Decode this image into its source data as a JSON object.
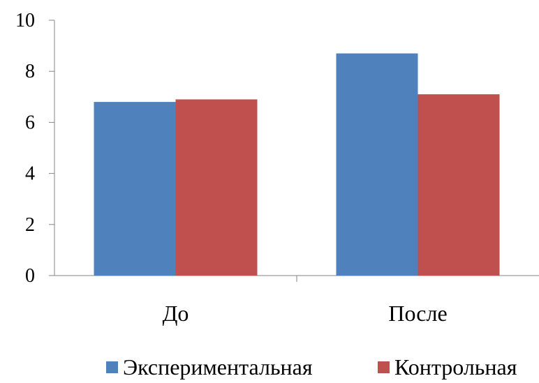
{
  "chart_data": {
    "type": "bar",
    "title": "",
    "xlabel": "",
    "ylabel": "",
    "categories": [
      "До",
      "После"
    ],
    "series": [
      {
        "name": "Экспериментальная",
        "values": [
          6.8,
          8.7
        ],
        "color": "#4F81BD"
      },
      {
        "name": "Контрольная",
        "values": [
          6.9,
          7.1
        ],
        "color": "#C0504D"
      }
    ],
    "ylim": [
      0,
      10
    ],
    "yticks": [
      "0",
      "2",
      "4",
      "6",
      "8",
      "10"
    ],
    "grid": false,
    "legend_position": "bottom"
  }
}
